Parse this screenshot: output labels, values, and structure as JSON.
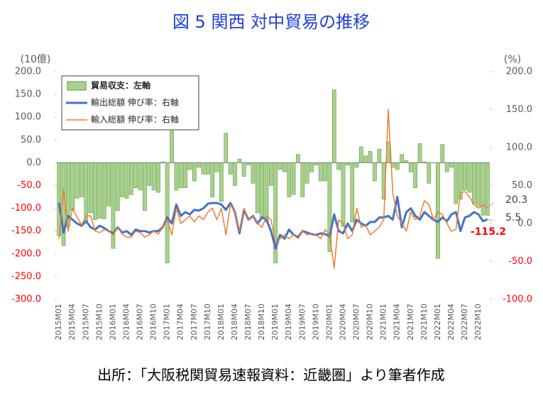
{
  "chart_data": {
    "type": "bar-line",
    "title": "図 5 関西 対中貿易の推移",
    "source": "出所：「大阪税関貿易速報資料：近畿圏」より筆者作成",
    "y_unit": "(10億)",
    "y2_unit": "(%)",
    "categories": [
      "2015M01",
      null,
      null,
      "2015M04",
      null,
      null,
      "2015M07",
      null,
      null,
      "2015M10",
      null,
      null,
      "2016M01",
      null,
      null,
      "2016M04",
      null,
      null,
      "2016M07",
      null,
      null,
      "2016M10",
      null,
      null,
      "2017M01",
      null,
      null,
      "2017M04",
      null,
      null,
      "2017M07",
      null,
      null,
      "2017M10",
      null,
      null,
      "2018M01",
      null,
      null,
      "2018M04",
      null,
      null,
      "2018M07",
      null,
      null,
      "2018M10",
      null,
      null,
      "2019M01",
      null,
      null,
      "2019M04",
      null,
      null,
      "2019M07",
      null,
      null,
      "2019M10",
      null,
      null,
      "2020M01",
      null,
      null,
      "2020M04",
      null,
      null,
      "2020M07",
      null,
      null,
      "2020M10",
      null,
      null,
      "2021M01",
      null,
      null,
      "2021M04",
      null,
      null,
      "2021M07",
      null,
      null,
      "2021M10",
      null,
      null,
      "2022M01",
      null,
      null,
      "2022M04",
      null,
      null,
      "2022M07",
      null,
      null,
      "2022M10",
      null,
      null
    ],
    "series": [
      {
        "name": "貿易収支：左軸",
        "kind": "bar",
        "axis": "y",
        "color": "#a9d18e",
        "edge": "#5b9a3a",
        "values": [
          -160,
          -182,
          -140,
          -105,
          -78,
          -75,
          -128,
          -110,
          -125,
          -122,
          -123,
          -95,
          -188,
          -105,
          -75,
          -78,
          -70,
          -55,
          -60,
          -105,
          -50,
          -60,
          -65,
          2,
          -220,
          70,
          -60,
          -55,
          -55,
          -15,
          -40,
          -10,
          -25,
          -25,
          -75,
          -20,
          -85,
          65,
          -25,
          -50,
          8,
          -30,
          -5,
          -45,
          -110,
          -120,
          -130,
          -50,
          -220,
          -15,
          -20,
          -75,
          -70,
          18,
          -75,
          -45,
          -20,
          -5,
          -40,
          -40,
          -195,
          160,
          -15,
          -140,
          -5,
          -130,
          -10,
          35,
          15,
          25,
          -40,
          30,
          -80,
          46,
          -10,
          -15,
          18,
          5,
          -20,
          -55,
          42,
          2,
          -45,
          0,
          -210,
          40,
          -20,
          -10,
          -90,
          -80,
          -60,
          -65,
          -90,
          -95,
          -115,
          -115.2
        ]
      },
      {
        "name": "輸出総額 伸び率：右軸",
        "kind": "line",
        "axis": "y2",
        "color": "#4472c4",
        "width": 3,
        "values": [
          27,
          -12,
          10,
          5,
          0,
          -3,
          3,
          -5,
          -8,
          -3,
          -6,
          -10,
          -13,
          -5,
          -12,
          -10,
          -15,
          -8,
          -10,
          -10,
          -12,
          -10,
          -10,
          -5,
          8,
          0,
          25,
          10,
          15,
          12,
          18,
          17,
          20,
          26,
          27,
          27,
          25,
          18,
          27,
          15,
          -13,
          18,
          5,
          10,
          0,
          8,
          5,
          -10,
          -33,
          -15,
          -20,
          -8,
          -15,
          -18,
          -10,
          -12,
          -14,
          -15,
          -13,
          -14,
          -17,
          12,
          -10,
          -13,
          0,
          -10,
          5,
          0,
          -3,
          2,
          2,
          8,
          8,
          10,
          5,
          35,
          -5,
          15,
          20,
          10,
          5,
          15,
          10,
          5,
          2,
          8,
          3,
          12,
          15,
          -10,
          8,
          10,
          15,
          12,
          3,
          5.5
        ]
      },
      {
        "name": "輸入総額 伸び率：右軸",
        "kind": "line",
        "axis": "y2",
        "color": "#ed7d31",
        "width": 1.5,
        "values": [
          -20,
          45,
          -10,
          20,
          8,
          -2,
          10,
          10,
          -10,
          -12,
          -8,
          -10,
          -15,
          -5,
          -14,
          -18,
          -18,
          -10,
          -12,
          -18,
          -15,
          -10,
          -14,
          -5,
          5,
          -15,
          20,
          0,
          5,
          10,
          2,
          10,
          5,
          15,
          20,
          5,
          20,
          -15,
          25,
          15,
          -10,
          20,
          5,
          10,
          0,
          -5,
          10,
          5,
          -25,
          -20,
          -15,
          -20,
          -15,
          -20,
          -10,
          -15,
          -13,
          -15,
          -20,
          -8,
          -15,
          -59,
          5,
          0,
          -20,
          -15,
          20,
          -5,
          -2,
          -15,
          -10,
          -5,
          5,
          150,
          40,
          10,
          0,
          -10,
          15,
          5,
          10,
          30,
          25,
          5,
          15,
          12,
          0,
          -10,
          -8,
          40,
          42,
          35,
          25,
          20,
          25,
          20.3
        ]
      }
    ],
    "ylim": [
      -300,
      200
    ],
    "yticks": [
      {
        "value": 200,
        "label": "200.0"
      },
      {
        "value": 150,
        "label": "150.0"
      },
      {
        "value": 100,
        "label": "100.0"
      },
      {
        "value": 50,
        "label": "50.0"
      },
      {
        "value": 0,
        "label": "0.0"
      },
      {
        "value": -50,
        "label": "-50.0"
      },
      {
        "value": -100,
        "label": "-100.0"
      },
      {
        "value": -150,
        "label": "-150.0"
      },
      {
        "value": -200,
        "label": "-200.0"
      },
      {
        "value": -250,
        "label": "-250.0"
      },
      {
        "value": -300,
        "label": "-300.0"
      }
    ],
    "y2lim": [
      -100,
      200
    ],
    "y2ticks": [
      {
        "value": 200,
        "label": "200.0"
      },
      {
        "value": 150,
        "label": "150.0"
      },
      {
        "value": 100,
        "label": "100.0"
      },
      {
        "value": 50,
        "label": "50.0"
      },
      {
        "value": 0,
        "label": "0.0"
      },
      {
        "value": -50,
        "label": "-50.0"
      },
      {
        "value": -100,
        "label": "-100.0"
      }
    ],
    "negative_tick_color": "#ff0000",
    "annotations": [
      "20.3",
      "5.5",
      "-115.2"
    ],
    "legend": "upper left"
  }
}
